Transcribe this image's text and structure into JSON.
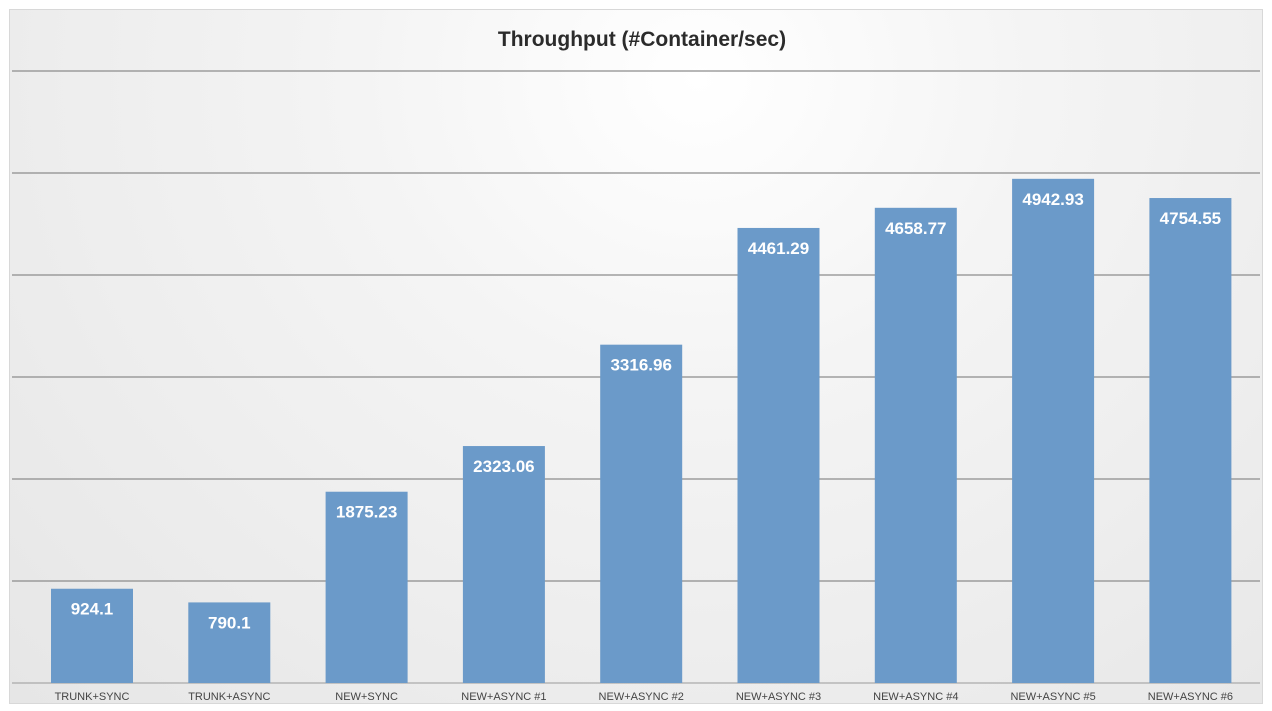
{
  "chart_data": {
    "type": "bar",
    "title": "Throughput (#Container/sec)",
    "xlabel": "",
    "ylabel": "",
    "categories": [
      "TRUNK+SYNC",
      "TRUNK+ASYNC",
      "NEW+SYNC",
      "NEW+ASYNC #1",
      "NEW+ASYNC #2",
      "NEW+ASYNC #3",
      "NEW+ASYNC #4",
      "NEW+ASYNC #5",
      "NEW+ASYNC #6"
    ],
    "values": [
      924.1,
      790.1,
      1875.23,
      2323.06,
      3316.96,
      4461.29,
      4658.77,
      4942.93,
      4754.55
    ],
    "value_labels": [
      "924.1",
      "790.1",
      "1875.23",
      "2323.06",
      "3316.96",
      "4461.29",
      "4658.77",
      "4942.93",
      "4754.55"
    ],
    "ylim": [
      0,
      6000
    ],
    "gridlines": [
      1000,
      2000,
      3000,
      4000,
      5000,
      6000
    ],
    "grid": true,
    "legend": "none",
    "bar_color": "#6b9ac9",
    "grid_color": "#8c8c8c"
  }
}
